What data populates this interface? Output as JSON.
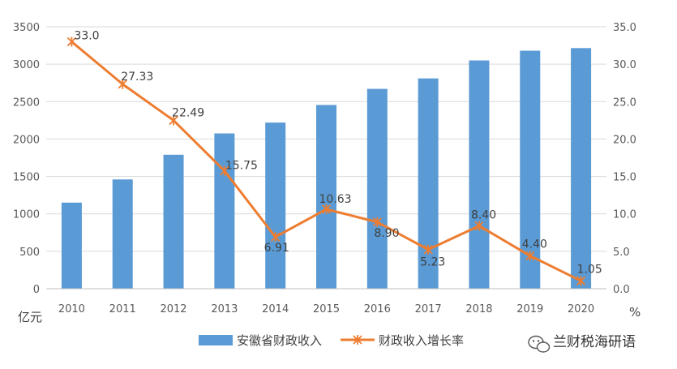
{
  "colors": {
    "bar": "#5b9bd5",
    "line": "#ed7d31",
    "grid": "#d9d9d9",
    "axis": "#bfbfbf",
    "text": "#595959"
  },
  "chart_data": {
    "type": "bar",
    "categories": [
      "2010",
      "2011",
      "2012",
      "2013",
      "2014",
      "2015",
      "2016",
      "2017",
      "2018",
      "2019",
      "2020"
    ],
    "series": [
      {
        "name": "安徽省财政收入",
        "type": "bar",
        "axis": "left",
        "values": [
          1150,
          1460,
          1790,
          2075,
          2220,
          2455,
          2670,
          2810,
          3050,
          3180,
          3215
        ]
      },
      {
        "name": "财政收入增长率",
        "type": "line",
        "axis": "right",
        "marker": "asterisk",
        "values": [
          33.0,
          27.33,
          22.49,
          15.75,
          6.91,
          10.63,
          8.9,
          5.23,
          8.4,
          4.4,
          1.05
        ],
        "labels": [
          "33.0",
          "27.33",
          "22.49",
          "15.75",
          "6.91",
          "10.63",
          "8.90",
          "5.23",
          "8.40",
          "4.40",
          "1.05"
        ]
      }
    ],
    "y_left": {
      "unit_label": "亿元",
      "ylim": [
        0,
        3500
      ],
      "ticks": [
        "0",
        "500",
        "1000",
        "1500",
        "2000",
        "2500",
        "3000",
        "3500"
      ]
    },
    "y_right": {
      "unit_label": "%",
      "ylim": [
        0,
        35
      ],
      "ticks": [
        "0.0",
        "5.0",
        "10.0",
        "15.0",
        "20.0",
        "25.0",
        "30.0",
        "35.0"
      ]
    },
    "grid": true,
    "legend_position": "bottom"
  },
  "watermark": {
    "icon": "wechat-icon",
    "text": "兰财税海研语"
  }
}
